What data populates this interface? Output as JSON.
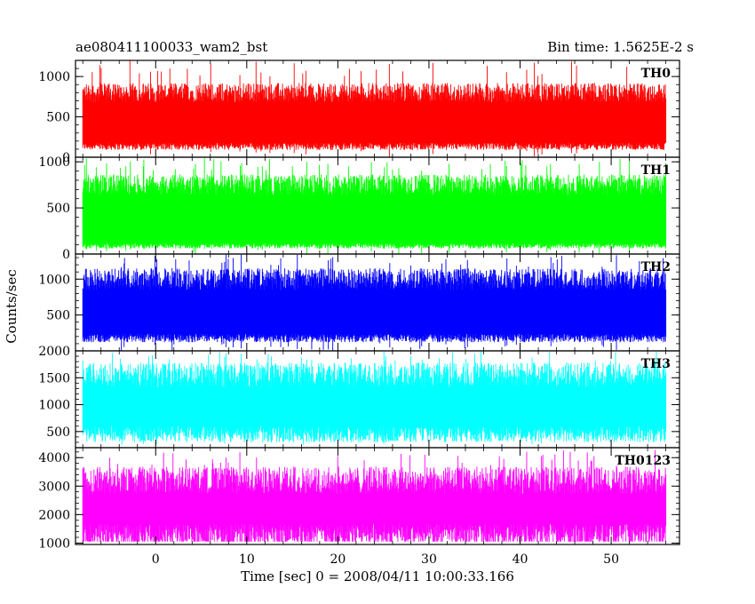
{
  "header": {
    "title": "ae080411100033_wam2_bst",
    "bin_time": "Bin time: 1.5625E-2 s"
  },
  "chart_data": {
    "type": "line",
    "xlabel": "Time [sec] 0 = 2008/04/11 10:00:33.166",
    "ylabel": "Counts/sec",
    "xlim": [
      -8.8,
      57.5
    ],
    "xticks": [
      0,
      10,
      20,
      30,
      40,
      50
    ],
    "x_data_range": [
      -8.0,
      56.0
    ],
    "grid": false,
    "panels": [
      {
        "name": "TH0",
        "color": "#ff0000",
        "ylim": [
          0,
          1200
        ],
        "yticks": [
          0,
          500,
          1000
        ],
        "baseline": 420,
        "typical_range": [
          150,
          800
        ],
        "peak_range": [
          1000,
          1200
        ],
        "y_min_floor": 0
      },
      {
        "name": "TH1",
        "color": "#00ff00",
        "ylim": [
          0,
          1050
        ],
        "yticks": [
          0,
          500,
          1000
        ],
        "baseline": 360,
        "typical_range": [
          100,
          750
        ],
        "peak_range": [
          900,
          1050
        ],
        "y_min_floor": 0
      },
      {
        "name": "TH2",
        "color": "#0000ff",
        "ylim": [
          0,
          1350
        ],
        "yticks": [
          500,
          1000
        ],
        "baseline": 560,
        "typical_range": [
          200,
          1000
        ],
        "peak_range": [
          1100,
          1350
        ],
        "y_min_floor": 0
      },
      {
        "name": "TH3",
        "color": "#00ffff",
        "ylim": [
          200,
          2000
        ],
        "yticks": [
          500,
          1000,
          1500,
          2000
        ],
        "baseline": 1050,
        "typical_range": [
          500,
          1550
        ],
        "peak_range": [
          1700,
          2000
        ],
        "y_min_floor": 250
      },
      {
        "name": "TH0123",
        "color": "#ff00ff",
        "ylim": [
          950,
          4350
        ],
        "yticks": [
          1000,
          2000,
          3000,
          4000
        ],
        "baseline": 2300,
        "typical_range": [
          1400,
          3200
        ],
        "peak_range": [
          3600,
          4300
        ],
        "y_min_floor": 1050
      }
    ]
  }
}
